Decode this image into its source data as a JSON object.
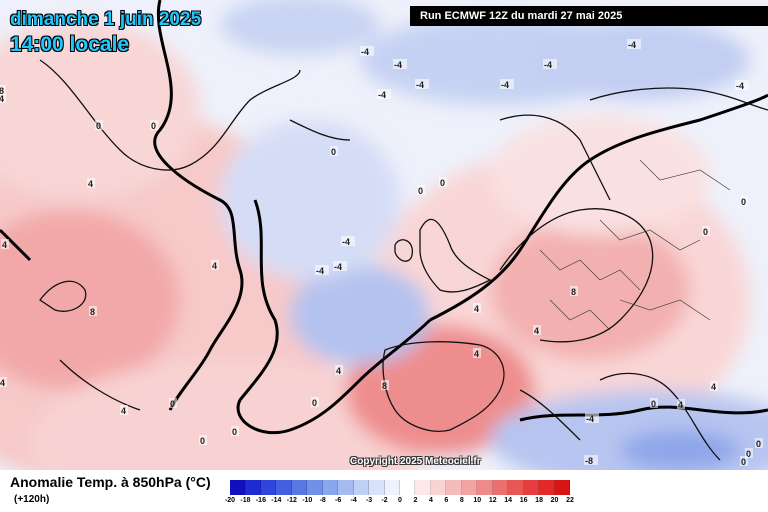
{
  "header": {
    "date": "dimanche 1 juin 2025",
    "time": "14:00 locale",
    "run": "Run ECMWF 12Z du mardi 27 mai 2025"
  },
  "copyright": "Copyright 2025 Meteociel.fr",
  "legend": {
    "title": "Anomalie Temp. à 850hPa (°C)",
    "subtitle": "(+120h)",
    "ticks": [
      "-20",
      "-18",
      "-16",
      "-14",
      "-12",
      "-10",
      "-8",
      "-6",
      "-4",
      "-3",
      "-2",
      "0",
      "2",
      "4",
      "6",
      "8",
      "10",
      "12",
      "14",
      "16",
      "18",
      "20",
      "22"
    ],
    "colors": [
      "#1010c0",
      "#1e2ad4",
      "#2f45dc",
      "#4260e0",
      "#5a78e4",
      "#7290e8",
      "#8aa6ec",
      "#a4baf0",
      "#c0d0f4",
      "#d8e2f8",
      "#eef2fc",
      "#ffffff",
      "#fce8e8",
      "#f9d4d4",
      "#f6bcbc",
      "#f2a4a4",
      "#ee8a8a",
      "#ea7070",
      "#e85656",
      "#e63e3e",
      "#e42828",
      "#d81414"
    ]
  },
  "map_labels": [
    {
      "text": "4"
    },
    {
      "text": "8"
    },
    {
      "text": "0"
    },
    {
      "text": "0"
    },
    {
      "text": "4"
    },
    {
      "text": "-4"
    },
    {
      "text": "-4"
    },
    {
      "text": "-4"
    },
    {
      "text": "-4"
    },
    {
      "text": "-4"
    },
    {
      "text": "-4"
    },
    {
      "text": "-4"
    },
    {
      "text": "-4"
    },
    {
      "text": "0"
    },
    {
      "text": "0"
    },
    {
      "text": "0"
    },
    {
      "text": "0"
    },
    {
      "text": "4"
    },
    {
      "text": "4"
    },
    {
      "text": "-4"
    },
    {
      "text": "-4"
    },
    {
      "text": "-4"
    },
    {
      "text": "8"
    },
    {
      "text": "4"
    },
    {
      "text": "8"
    },
    {
      "text": "4"
    },
    {
      "text": "8"
    },
    {
      "text": "4"
    },
    {
      "text": "0"
    },
    {
      "text": "4"
    },
    {
      "text": "4"
    },
    {
      "text": "4"
    },
    {
      "text": "0"
    },
    {
      "text": "0"
    },
    {
      "text": "0"
    },
    {
      "text": "0"
    },
    {
      "text": "-4"
    },
    {
      "text": "-8"
    },
    {
      "text": "0"
    },
    {
      "text": "0"
    },
    {
      "text": "0"
    },
    {
      "text": "4"
    },
    {
      "text": "4"
    },
    {
      "text": "0"
    }
  ]
}
